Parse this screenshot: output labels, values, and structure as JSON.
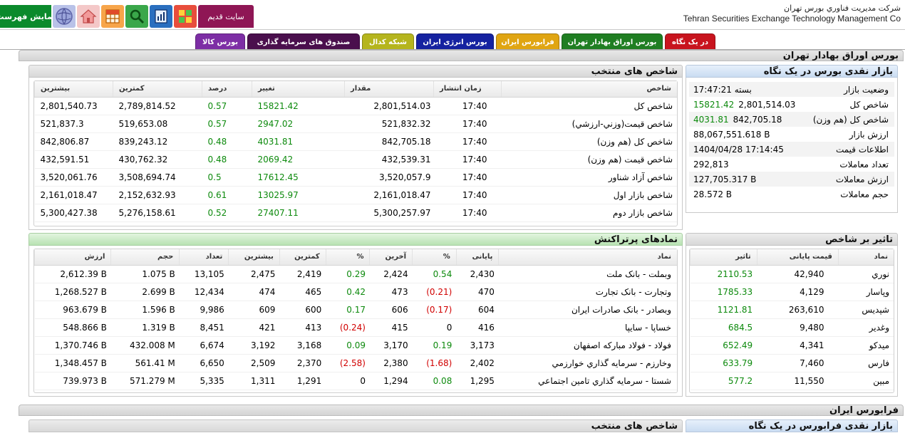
{
  "topbar": {
    "show_list": "نمایش فهرست",
    "old_site": "سایت قدیم",
    "company_fa": "شرکت مديريت فناوري بورس تهران",
    "company_en": "Tehran Securities Exchange Technology Management Co",
    "icons": [
      "globe-icon",
      "home-icon",
      "table-icon",
      "search-icon",
      "report-icon",
      "chart-icon"
    ]
  },
  "tabs": [
    {
      "label": "در یک نگاه",
      "color": "#c8141e"
    },
    {
      "label": "بورس اوراق بهادار تهران",
      "color": "#1f7e22"
    },
    {
      "label": "فرابورس ایران",
      "color": "#e0a512"
    },
    {
      "label": "بورس انرژی ایران",
      "color": "#1522a0"
    },
    {
      "label": "شبکه کدال",
      "color": "#b5b51d"
    },
    {
      "label": "صندوق های سرمایه گذاری",
      "color": "#4a0f4d"
    },
    {
      "label": "بورس کالا",
      "color": "#7d2ea5"
    }
  ],
  "section_tse": "بورس اوراق بهادار تهران",
  "section_ifb": "فرابورس ایران",
  "market_glance": {
    "title": "بازار نقدی بورس در یک نگاه",
    "rows": [
      {
        "label": "وضعیت بازار",
        "value": "بسته 17:47:21",
        "extra": ""
      },
      {
        "label": "شاخص کل",
        "value": "2,801,514.03",
        "extra": "15821.42"
      },
      {
        "label": "شاخص کل (هم وزن)",
        "value": "842,705.18",
        "extra": "4031.81"
      },
      {
        "label": "ارزش بازار",
        "value": "88,067,551.618 B",
        "extra": ""
      },
      {
        "label": "اطلاعات قیمت",
        "value": "1404/04/28 17:14:45",
        "extra": ""
      },
      {
        "label": "تعداد معاملات",
        "value": "292,813",
        "extra": ""
      },
      {
        "label": "ارزش معاملات",
        "value": "127,705.317 B",
        "extra": ""
      },
      {
        "label": "حجم معاملات",
        "value": "28.572 B",
        "extra": ""
      }
    ]
  },
  "indices": {
    "title": "شاخص های منتخب",
    "headers": [
      "شاخص",
      "زمان انتشار",
      "مقدار",
      "تغییر",
      "درصد",
      "کمترین",
      "بیشترین"
    ],
    "rows": [
      [
        "شاخص کل",
        "17:40",
        "2,801,514.03",
        "15821.42",
        "0.57",
        "2,789,814.52",
        "2,801,540.73"
      ],
      [
        "شاخص قیمت(وزني-ارزشي)",
        "17:40",
        "521,832.32",
        "2947.02",
        "0.57",
        "519,653.08",
        "521,837.3"
      ],
      [
        "شاخص کل (هم وزن)",
        "17:40",
        "842,705.18",
        "4031.81",
        "0.48",
        "839,243.12",
        "842,806.87"
      ],
      [
        "شاخص قيمت (هم وزن)",
        "17:40",
        "432,539.31",
        "2069.42",
        "0.48",
        "430,762.32",
        "432,591.51"
      ],
      [
        "شاخص آزاد شناور",
        "17:40",
        "3,520,057.9",
        "17612.45",
        "0.5",
        "3,508,694.74",
        "3,520,061.76"
      ],
      [
        "شاخص بازار اول",
        "17:40",
        "2,161,018.47",
        "13025.97",
        "0.61",
        "2,152,632.93",
        "2,161,018.47"
      ],
      [
        "شاخص بازار دوم",
        "17:40",
        "5,300,257.97",
        "27407.11",
        "0.52",
        "5,276,158.61",
        "5,300,427.38"
      ]
    ]
  },
  "impact": {
    "title": "تاثیر بر شاخص",
    "headers": [
      "نماد",
      "قیمت پایانی",
      "تاثیر"
    ],
    "rows": [
      [
        "نوري",
        "42,940",
        "2110.53"
      ],
      [
        "وپاسار",
        "4,129",
        "1785.33"
      ],
      [
        "شپديس",
        "263,610",
        "1121.81"
      ],
      [
        "وغدير",
        "9,480",
        "684.5"
      ],
      [
        "ميدكو",
        "4,341",
        "652.49"
      ],
      [
        "فارس",
        "7,460",
        "633.79"
      ],
      [
        "مبين",
        "11,550",
        "577.2"
      ]
    ]
  },
  "active": {
    "title": "نمادهای پرتراکنش",
    "headers": [
      "نماد",
      "پایانی",
      "%",
      "آخرین",
      "%",
      "کمترین",
      "بیشترین",
      "تعداد",
      "حجم",
      "ارزش"
    ],
    "rows": [
      [
        "وبملت - بانک ملت",
        "2,430",
        "0.54",
        "2,424",
        "0.29",
        "2,419",
        "2,475",
        "13,105",
        "1.075 B",
        "2,612.39 B"
      ],
      [
        "وتجارت - بانک تجارت",
        "470",
        "(0.21)",
        "473",
        "0.42",
        "465",
        "474",
        "12,434",
        "2.699 B",
        "1,268.527 B"
      ],
      [
        "وبصادر - بانک صادرات ایران",
        "604",
        "(0.17)",
        "606",
        "0.17",
        "600",
        "609",
        "9,986",
        "1.596 B",
        "963.679 B"
      ],
      [
        "خساپا - سايپا",
        "416",
        "0",
        "415",
        "(0.24)",
        "413",
        "421",
        "8,451",
        "1.319 B",
        "548.866 B"
      ],
      [
        "فولاد - فولاد مبارکه اصفهان",
        "3,173",
        "0.19",
        "3,170",
        "0.09",
        "3,168",
        "3,192",
        "6,674",
        "432.008 M",
        "1,370.746 B"
      ],
      [
        "وخارزم - سرمايه گذاري خوارزمي",
        "2,402",
        "(1.68)",
        "2,380",
        "(2.58)",
        "2,370",
        "2,509",
        "6,650",
        "561.41 M",
        "1,348.457 B"
      ],
      [
        "شستا - سرمايه گذاري تامين اجتماعي",
        "1,295",
        "0.08",
        "1,294",
        "0",
        "1,291",
        "1,311",
        "5,335",
        "571.279 M",
        "739.973 B"
      ]
    ]
  },
  "ifb_glance_title": "بازار نقدی فرابورس در یک نگاه",
  "ifb_indices_title": "شاخص های منتخب",
  "colors": {
    "positive": "#0d8a0d",
    "negative": "#d10000"
  }
}
